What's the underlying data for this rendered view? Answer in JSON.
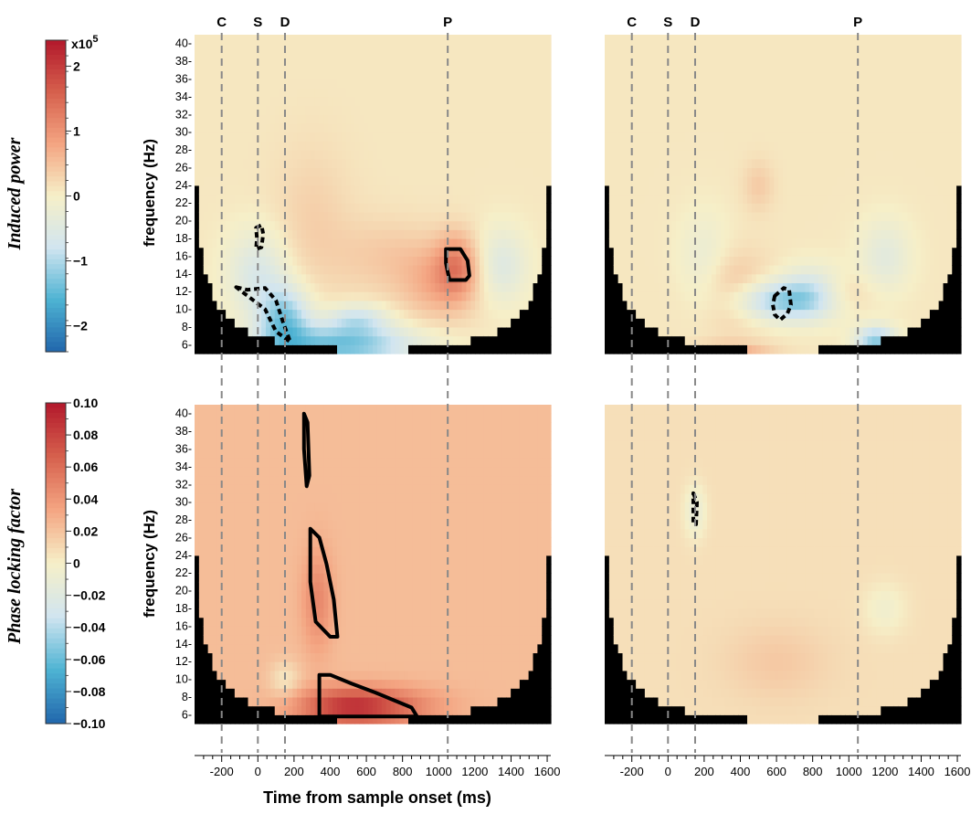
{
  "colorbars": [
    {
      "label": "Induced power",
      "exponent_base": "x10",
      "exponent_power": "5",
      "ticks": [
        "2",
        "1",
        "0",
        "−1",
        "−2"
      ],
      "tick_values": [
        2,
        1,
        0,
        -1,
        -2
      ],
      "range": [
        -2.4,
        2.4
      ]
    },
    {
      "label": "Phase locking factor",
      "ticks": [
        "0.10",
        "0.08",
        "0.06",
        "0.04",
        "0.02",
        "0",
        "−0.02",
        "−0.04",
        "−0.06",
        "−0.08",
        "−0.10"
      ],
      "tick_values": [
        0.1,
        0.08,
        0.06,
        0.04,
        0.02,
        0,
        -0.02,
        -0.04,
        -0.06,
        -0.08,
        -0.1
      ],
      "range": [
        -0.1,
        0.1
      ]
    }
  ],
  "chart_data": {
    "type": "heatmap",
    "xlabel": "Time from sample onset (ms)",
    "ylabel": "frequency (Hz)",
    "xlim": [
      -350,
      1620
    ],
    "ylim": [
      5,
      41
    ],
    "x_ticks": [
      "-200",
      "0",
      "200",
      "400",
      "600",
      "800",
      "1000",
      "1200",
      "1400",
      "1600"
    ],
    "x_tick_values": [
      -200,
      0,
      200,
      400,
      600,
      800,
      1000,
      1200,
      1400,
      1600
    ],
    "y_ticks": [
      "6-",
      "8-",
      "10-",
      "12-",
      "14-",
      "16-",
      "18-",
      "20-",
      "22-",
      "24-",
      "26-",
      "28-",
      "30-",
      "32-",
      "34-",
      "36-",
      "38-",
      "40-"
    ],
    "y_tick_values": [
      6,
      8,
      10,
      12,
      14,
      16,
      18,
      20,
      22,
      24,
      26,
      28,
      30,
      32,
      34,
      36,
      38,
      40
    ],
    "event_markers": [
      {
        "label": "C",
        "time": -200
      },
      {
        "label": "S",
        "time": 0
      },
      {
        "label": "D",
        "time": 150
      },
      {
        "label": "P",
        "time": 1050
      }
    ],
    "colormap": [
      "#2166ac",
      "#4eb3d3",
      "#d1e5f0",
      "#f6efc8",
      "#f4a582",
      "#d6604d",
      "#b2182b"
    ],
    "panels": [
      {
        "row": "Induced power",
        "column": "left",
        "baseline": 0.05,
        "blobs": [
          {
            "t": 450,
            "f": 6,
            "st": 300,
            "sf": 1.6,
            "a": -1.5
          },
          {
            "t": 550,
            "f": 9,
            "st": 120,
            "sf": 1.2,
            "a": -0.8
          },
          {
            "t": 150,
            "f": 9,
            "st": 100,
            "sf": 2.5,
            "a": -1.3
          },
          {
            "t": 0,
            "f": 14,
            "st": 120,
            "sf": 3.5,
            "a": -0.7
          },
          {
            "t": 1000,
            "f": 13,
            "st": 150,
            "sf": 3,
            "a": 0.6
          },
          {
            "t": 1100,
            "f": 15,
            "st": 80,
            "sf": 2.5,
            "a": 0.9
          },
          {
            "t": 300,
            "f": 20,
            "st": 150,
            "sf": 6,
            "a": 0.25
          },
          {
            "t": 1350,
            "f": 15,
            "st": 100,
            "sf": 3,
            "a": -0.6
          },
          {
            "t": 700,
            "f": 16,
            "st": 200,
            "sf": 3,
            "a": 0.3
          }
        ],
        "contours": [
          {
            "style": "solid",
            "t": [
              1040,
              1120,
              1160,
              1170,
              1150,
              1100,
              1060,
              1050,
              1040
            ],
            "f": [
              16.8,
              16.8,
              15.5,
              13.8,
              13.3,
              13.3,
              13.3,
              14.2,
              15.2
            ]
          },
          {
            "style": "dashed",
            "t": [
              -10,
              20,
              30,
              20,
              -10,
              -5,
              -10
            ],
            "f": [
              19.2,
              19.5,
              18.5,
              17,
              16.8,
              18,
              19.2
            ]
          },
          {
            "style": "dashed",
            "t": [
              -120,
              -60,
              40,
              100,
              140,
              180,
              100,
              40
            ],
            "f": [
              12.5,
              12.2,
              12.4,
              11,
              8.5,
              6.3,
              7.5,
              10
            ]
          }
        ]
      },
      {
        "row": "Induced power",
        "column": "right",
        "baseline": 0.05,
        "blobs": [
          {
            "t": 600,
            "f": 11,
            "st": 180,
            "sf": 1.6,
            "a": -1.2
          },
          {
            "t": 800,
            "f": 12,
            "st": 120,
            "sf": 2,
            "a": -0.9
          },
          {
            "t": 1150,
            "f": 6.5,
            "st": 80,
            "sf": 1.2,
            "a": -1.3
          },
          {
            "t": 1200,
            "f": 16,
            "st": 100,
            "sf": 3,
            "a": -0.5
          },
          {
            "t": 350,
            "f": 12,
            "st": 150,
            "sf": 3,
            "a": 0.5
          },
          {
            "t": 350,
            "f": 5.5,
            "st": 150,
            "sf": 0.6,
            "a": 0.6
          },
          {
            "t": 500,
            "f": 24,
            "st": 60,
            "sf": 2,
            "a": 0.3
          },
          {
            "t": 900,
            "f": 12,
            "st": 150,
            "sf": 1.5,
            "a": 0.4
          },
          {
            "t": 200,
            "f": 15,
            "st": 100,
            "sf": 4,
            "a": -0.4
          }
        ],
        "contours": [
          {
            "style": "dashed",
            "t": [
              590,
              640,
              670,
              680,
              660,
              620,
              590,
              580
            ],
            "f": [
              11.5,
              12.4,
              12.2,
              10.5,
              9.5,
              8.8,
              9.4,
              10.5
            ]
          }
        ]
      },
      {
        "row": "Phase locking factor",
        "column": "left",
        "baseline": 0.022,
        "blobs": [
          {
            "t": 500,
            "f": 7,
            "st": 200,
            "sf": 1.5,
            "a": 0.06
          },
          {
            "t": 330,
            "f": 19,
            "st": 60,
            "sf": 4,
            "a": 0.025
          },
          {
            "t": 800,
            "f": 7,
            "st": 200,
            "sf": 1.5,
            "a": 0.02
          },
          {
            "t": 150,
            "f": 10,
            "st": 60,
            "sf": 1.5,
            "a": -0.02
          }
        ],
        "contours": [
          {
            "style": "solid",
            "t": [
              255,
              275,
              285,
              270,
              255
            ],
            "f": [
              40,
              39,
              33,
              31.8,
              36
            ]
          },
          {
            "style": "solid",
            "t": [
              290,
              340,
              380,
              420,
              440,
              400,
              320,
              290
            ],
            "f": [
              27,
              26,
              23,
              19,
              14.8,
              14.8,
              16.5,
              21
            ]
          },
          {
            "style": "solid",
            "t": [
              340,
              400,
              520,
              650,
              850,
              880,
              750,
              600,
              340
            ],
            "f": [
              10.5,
              10.5,
              9.5,
              8.5,
              6.8,
              5.8,
              5.8,
              5.8,
              5.8
            ]
          }
        ]
      },
      {
        "row": "Phase locking factor",
        "column": "right",
        "baseline": 0.007,
        "blobs": [
          {
            "t": 150,
            "f": 29,
            "st": 40,
            "sf": 2,
            "a": -0.02
          },
          {
            "t": 1200,
            "f": 18,
            "st": 80,
            "sf": 2,
            "a": -0.012
          },
          {
            "t": 600,
            "f": 12,
            "st": 200,
            "sf": 3,
            "a": 0.01
          }
        ],
        "contours": [
          {
            "style": "dashed",
            "t": [
              140,
              160,
              155,
              140
            ],
            "f": [
              31,
              30,
              27.5,
              27.5
            ]
          }
        ]
      }
    ]
  }
}
